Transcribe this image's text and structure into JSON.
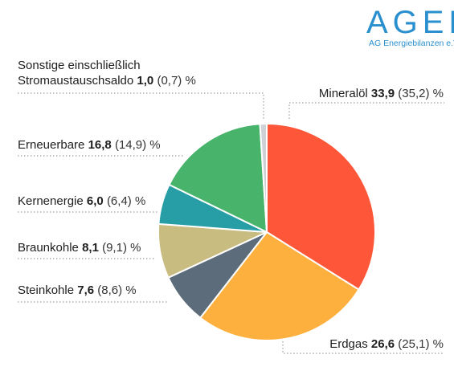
{
  "logo": {
    "word": "AGEB",
    "subtitle": "AG Energiebilanzen e.V."
  },
  "percent_sign": "%",
  "chart_data": {
    "type": "pie",
    "start_angle_deg": 0,
    "direction": "clockwise",
    "slices": [
      {
        "label": "Mineralöl",
        "value": 33.9,
        "value_text": "33,9",
        "prev": 35.2,
        "prev_text": "(35,2)",
        "color": "#fd5638"
      },
      {
        "label": "Erdgas",
        "value": 26.6,
        "value_text": "26,6",
        "prev": 25.1,
        "prev_text": "(25,1)",
        "color": "#fdb03d"
      },
      {
        "label": "Steinkohle",
        "value": 7.6,
        "value_text": "7,6",
        "prev": 8.6,
        "prev_text": "(8,6)",
        "color": "#5d6c7b"
      },
      {
        "label": "Braunkohle",
        "value": 8.1,
        "value_text": "8,1",
        "prev": 9.1,
        "prev_text": "(9,1)",
        "color": "#c8bc80"
      },
      {
        "label": "Kernenergie",
        "value": 6.0,
        "value_text": "6,0",
        "prev": 6.4,
        "prev_text": "(6,4)",
        "color": "#279da6"
      },
      {
        "label": "Erneuerbare",
        "value": 16.8,
        "value_text": "16,8",
        "prev": 14.9,
        "prev_text": "(14,9)",
        "color": "#47b36b"
      },
      {
        "label": "Sonstige einschließlich",
        "label_line2": "Stromaustauschsaldo",
        "value": 1.0,
        "value_text": "1,0",
        "prev": 0.7,
        "prev_text": "(0,7)",
        "color": "#cdd2d6"
      }
    ]
  }
}
